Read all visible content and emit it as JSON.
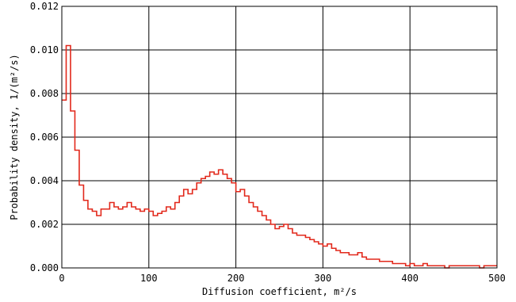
{
  "chart_data": {
    "type": "line",
    "style": "step",
    "xlabel": "Diffusion coefficient, m²/s",
    "ylabel": "Probability density, 1/(m²/s)",
    "xlim": [
      0,
      500
    ],
    "ylim": [
      0,
      0.012
    ],
    "grid": true,
    "x_ticks": [
      0,
      100,
      200,
      300,
      400,
      500
    ],
    "y_ticks": [
      0.0,
      0.002,
      0.004,
      0.006,
      0.008,
      0.01,
      0.012
    ],
    "x_tick_labels": [
      "0",
      "100",
      "200",
      "300",
      "400",
      "500"
    ],
    "y_tick_labels": [
      "0.000",
      "0.002",
      "0.004",
      "0.006",
      "0.008",
      "0.010",
      "0.012"
    ],
    "colors": {
      "series": "#e2281b",
      "grid": "#000000",
      "axes": "#000000"
    },
    "bin_width": 5,
    "bin_start": 0,
    "series": [
      {
        "values": [
          0.0077,
          0.0102,
          0.0072,
          0.0054,
          0.0038,
          0.0031,
          0.0027,
          0.0026,
          0.0024,
          0.0027,
          0.0027,
          0.003,
          0.0028,
          0.0027,
          0.0028,
          0.003,
          0.0028,
          0.0027,
          0.0026,
          0.0027,
          0.0026,
          0.0024,
          0.0025,
          0.0026,
          0.0028,
          0.0027,
          0.003,
          0.0033,
          0.0036,
          0.0034,
          0.0036,
          0.0039,
          0.0041,
          0.0042,
          0.0044,
          0.0043,
          0.0045,
          0.0043,
          0.0041,
          0.0039,
          0.0035,
          0.0036,
          0.0033,
          0.003,
          0.0028,
          0.0026,
          0.0024,
          0.0022,
          0.002,
          0.0018,
          0.0019,
          0.002,
          0.0018,
          0.0016,
          0.0015,
          0.0015,
          0.0014,
          0.0013,
          0.0012,
          0.0011,
          0.001,
          0.0011,
          0.0009,
          0.0008,
          0.0007,
          0.0007,
          0.0006,
          0.0006,
          0.0007,
          0.0005,
          0.0004,
          0.0004,
          0.0004,
          0.0003,
          0.0003,
          0.0003,
          0.0002,
          0.0002,
          0.0002,
          0.0001,
          0.0002,
          0.0001,
          0.0001,
          0.0002,
          0.0001,
          0.0001,
          0.0001,
          0.0001,
          0.0,
          0.0001,
          0.0001,
          0.0001,
          0.0001,
          0.0001,
          0.0001,
          0.0001,
          0.0,
          0.0001,
          0.0001,
          0.0001
        ]
      }
    ]
  }
}
